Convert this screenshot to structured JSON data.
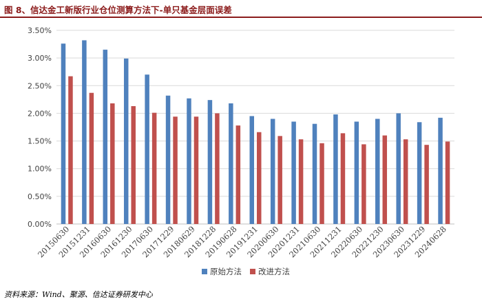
{
  "figure_title": "图 8、信达金工新版行业仓位测算方法下-单只基金层面误差",
  "source_note": "资料来源：Wind、聚源、信达证券研发中心",
  "colors": {
    "title": "#8b1a1a",
    "series_original": "#4f81bd",
    "series_improved": "#c0504d",
    "grid": "#d9d9d9",
    "axis": "#bfbfbf"
  },
  "chart_data": {
    "type": "bar",
    "title": "",
    "xlabel": "",
    "ylabel": "",
    "ylim": [
      0,
      0.035
    ],
    "y_ticks": [
      "0.00%",
      "0.50%",
      "1.00%",
      "1.50%",
      "2.00%",
      "2.50%",
      "3.00%",
      "3.50%"
    ],
    "grid": true,
    "legend_position": "bottom",
    "categories": [
      "20150630",
      "20151231",
      "20160630",
      "20161230",
      "20170630",
      "20171229",
      "20180629",
      "20181228",
      "20190628",
      "20191231",
      "20200630",
      "20201231",
      "20210630",
      "20211231",
      "20220630",
      "20221230",
      "20230630",
      "20231229",
      "20240628"
    ],
    "series": [
      {
        "name": "原始方法",
        "color": "#4f81bd",
        "values": [
          0.0326,
          0.0332,
          0.0315,
          0.0299,
          0.027,
          0.0232,
          0.0227,
          0.0224,
          0.0218,
          0.0195,
          0.019,
          0.0185,
          0.0181,
          0.0198,
          0.0185,
          0.019,
          0.02,
          0.0184,
          0.0192
        ]
      },
      {
        "name": "改进方法",
        "color": "#c0504d",
        "values": [
          0.0267,
          0.0237,
          0.0218,
          0.0213,
          0.0201,
          0.0194,
          0.0194,
          0.02,
          0.0178,
          0.0166,
          0.0159,
          0.0153,
          0.0146,
          0.0164,
          0.0144,
          0.016,
          0.0153,
          0.0143,
          0.0149
        ]
      }
    ]
  }
}
